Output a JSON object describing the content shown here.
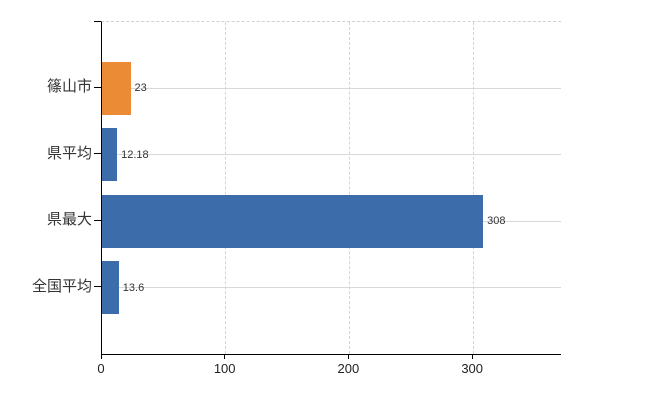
{
  "chart_data": {
    "type": "bar",
    "orientation": "horizontal",
    "title": "",
    "xlabel": "",
    "ylabel": "",
    "categories": [
      "篠山市",
      "県平均",
      "県最大",
      "全国平均"
    ],
    "values": [
      23,
      12.18,
      308,
      13.6
    ],
    "value_labels": [
      "23",
      "12.18",
      "308",
      "13.6"
    ],
    "bar_colors": [
      "#EC8B35",
      "#3C6DAA",
      "#3C6DAA",
      "#3C6DAA"
    ],
    "x_ticks": [
      0,
      100,
      200,
      300
    ],
    "x_tick_labels": [
      "0",
      "100",
      "200",
      "300"
    ],
    "xlim": [
      0,
      371
    ],
    "legend": "none",
    "grid": {
      "vertical": "dashed",
      "horizontal": "solid",
      "top_border": "dashed"
    }
  },
  "colors": {
    "bar_orange": "#EC8B35",
    "bar_blue": "#3C6DAA",
    "gridline": "#D7DAD2",
    "axis": "#000000",
    "label_text": "#333333",
    "background": "#FFFFFF"
  }
}
